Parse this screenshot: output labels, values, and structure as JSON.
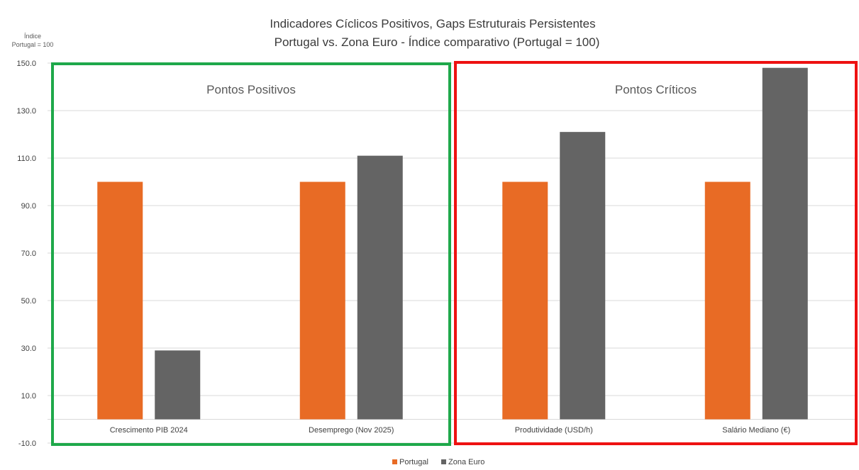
{
  "chart_data": {
    "type": "bar",
    "title": "Indicadores Cíclicos Positivos, Gaps Estruturais Persistentes",
    "subtitle": "Portugal vs. Zona Euro - Índice comparativo (Portugal = 100)",
    "ylabel": [
      "Índice",
      "Portugal = 100"
    ],
    "xlabel": "",
    "ylim": [
      -10,
      150
    ],
    "yticks": [
      "150.0",
      "130.0",
      "110.0",
      "90.0",
      "70.0",
      "50.0",
      "30.0",
      "10.0",
      "-10.0"
    ],
    "ytick_values": [
      150,
      130,
      110,
      90,
      70,
      50,
      30,
      10,
      -10
    ],
    "grid": true,
    "legend_position": "bottom",
    "categories": [
      "Crescimento PIB 2024",
      "Desemprego (Nov 2025)",
      "Produtividade (USD/h)",
      "Salário Mediano (€)"
    ],
    "series": [
      {
        "name": "Portugal",
        "color": "#E86B25",
        "values": [
          100,
          100,
          100,
          100
        ]
      },
      {
        "name": "Zona Euro",
        "color": "#646464",
        "values": [
          29,
          111,
          121,
          148
        ]
      }
    ],
    "annotations": [
      {
        "text": "Pontos Positivos",
        "border_color": "#1EA84A",
        "categories": [
          0,
          1
        ]
      },
      {
        "text": "Pontos Críticos",
        "border_color": "#EE1111",
        "categories": [
          2,
          3
        ]
      }
    ]
  }
}
